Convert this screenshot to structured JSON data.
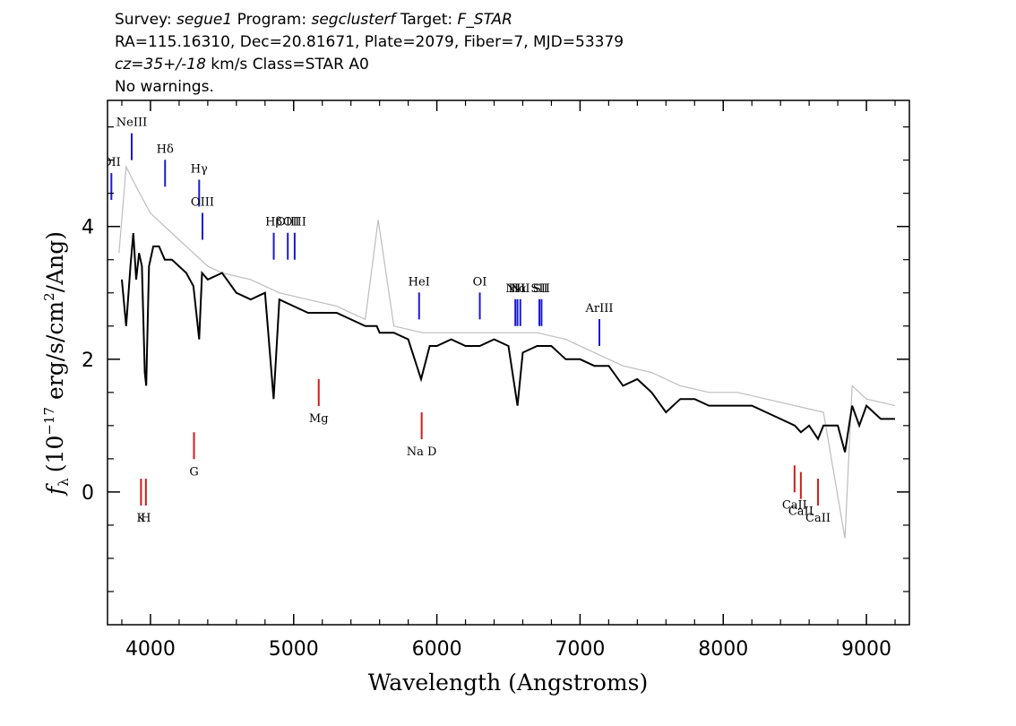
{
  "header": {
    "line1": {
      "survey_label": "Survey:",
      "survey": "segue1",
      "program_label": "Program:",
      "program": "segclusterf",
      "target_label": "Target:",
      "target": "F_STAR"
    },
    "line2": "RA=115.16310, Dec=20.81671, Plate=2079, Fiber=7, MJD=53379",
    "line3": {
      "cz": "cz=35+/-18",
      "rest": " km/s Class=STAR A0"
    },
    "line4": "No warnings."
  },
  "chart_data": {
    "type": "line",
    "xlabel": "Wavelength (Angstroms)",
    "ylabel_symbol": "f",
    "ylabel_sub": "λ",
    "ylabel_pre": "(10",
    "ylabel_exp": "−17",
    "ylabel_mid": " erg/s/cm",
    "ylabel_exp2": "2",
    "ylabel_post": "/Ang)",
    "xlim": [
      3700,
      9300
    ],
    "ylim": [
      -2.0,
      5.9
    ],
    "x_ticks": [
      4000,
      5000,
      6000,
      7000,
      8000,
      9000
    ],
    "x_tick_labels": [
      "4000",
      "5000",
      "6000",
      "7000",
      "8000",
      "9000"
    ],
    "y_ticks": [
      0,
      2,
      4
    ],
    "y_tick_labels": [
      "0",
      "2",
      "4"
    ],
    "series": [
      {
        "color": "#000000",
        "x": [
          3800,
          3830,
          3860,
          3880,
          3900,
          3920,
          3940,
          3960,
          3970,
          3990,
          4020,
          4060,
          4100,
          4150,
          4200,
          4250,
          4300,
          4340,
          4360,
          4400,
          4500,
          4600,
          4700,
          4800,
          4860,
          4900,
          5000,
          5100,
          5200,
          5300,
          5400,
          5500,
          5580,
          5600,
          5700,
          5800,
          5890,
          5950,
          6000,
          6100,
          6200,
          6300,
          6400,
          6500,
          6563,
          6600,
          6700,
          6800,
          6900,
          7000,
          7100,
          7200,
          7300,
          7400,
          7500,
          7600,
          7700,
          7800,
          7900,
          8000,
          8100,
          8200,
          8300,
          8400,
          8500,
          8542,
          8600,
          8662,
          8700,
          8800,
          8850,
          8900,
          8950,
          9000,
          9100,
          9200
        ],
        "y": [
          3.2,
          2.5,
          3.4,
          3.9,
          3.2,
          3.6,
          3.4,
          1.8,
          1.6,
          3.4,
          3.7,
          3.7,
          3.5,
          3.5,
          3.4,
          3.3,
          3.1,
          2.3,
          3.3,
          3.2,
          3.3,
          3.0,
          2.9,
          3.0,
          1.4,
          2.9,
          2.8,
          2.7,
          2.7,
          2.7,
          2.6,
          2.5,
          2.5,
          2.4,
          2.4,
          2.3,
          1.7,
          2.2,
          2.2,
          2.3,
          2.2,
          2.2,
          2.3,
          2.2,
          1.3,
          2.1,
          2.2,
          2.2,
          2.0,
          2.0,
          1.9,
          1.9,
          1.6,
          1.7,
          1.5,
          1.2,
          1.4,
          1.4,
          1.3,
          1.3,
          1.3,
          1.3,
          1.2,
          1.1,
          1.0,
          0.9,
          1.0,
          0.8,
          1.0,
          1.0,
          0.6,
          1.3,
          1.0,
          1.3,
          1.1,
          1.1
        ]
      },
      {
        "color": "#bdbdbd",
        "x": [
          3780,
          3830,
          3900,
          4000,
          4100,
          4200,
          4300,
          4400,
          4500,
          4700,
          4900,
          5100,
          5300,
          5500,
          5590,
          5700,
          5900,
          6100,
          6300,
          6500,
          6700,
          6900,
          7100,
          7300,
          7500,
          7700,
          7900,
          8100,
          8300,
          8500,
          8700,
          8850,
          8900,
          9000,
          9200
        ],
        "y": [
          3.6,
          4.9,
          4.6,
          4.2,
          4.0,
          3.8,
          3.6,
          3.4,
          3.3,
          3.2,
          3.0,
          2.9,
          2.8,
          2.6,
          4.1,
          2.5,
          2.4,
          2.4,
          2.4,
          2.4,
          2.4,
          2.3,
          2.1,
          1.9,
          1.8,
          1.6,
          1.5,
          1.5,
          1.4,
          1.3,
          1.2,
          -0.7,
          1.6,
          1.4,
          1.3
        ]
      }
    ],
    "emission_lines": [
      {
        "label": "OII",
        "wave": 3727
      },
      {
        "label": "NeIII",
        "wave": 3869
      },
      {
        "label": "Hδ",
        "wave": 4102
      },
      {
        "label": "Hγ",
        "wave": 4340
      },
      {
        "label": "OIII",
        "wave": 4363
      },
      {
        "label": "Hβ",
        "wave": 4861
      },
      {
        "label": "OIII",
        "wave": 4959
      },
      {
        "label": "OIII",
        "wave": 5007
      },
      {
        "label": "HeI",
        "wave": 5876
      },
      {
        "label": "OI",
        "wave": 6300
      },
      {
        "label": "NII",
        "wave": 6548
      },
      {
        "label": "Hα",
        "wave": 6563
      },
      {
        "label": "NII",
        "wave": 6583
      },
      {
        "label": "SII",
        "wave": 6716
      },
      {
        "label": "SII",
        "wave": 6731
      },
      {
        "label": "ArIII",
        "wave": 7135
      }
    ],
    "absorption_lines": [
      {
        "label": "K",
        "wave": 3934
      },
      {
        "label": "H",
        "wave": 3968
      },
      {
        "label": "G",
        "wave": 4304
      },
      {
        "label": "Mg",
        "wave": 5175
      },
      {
        "label": "Na D",
        "wave": 5894
      },
      {
        "label": "CaII",
        "wave": 8498
      },
      {
        "label": "CaII",
        "wave": 8542
      },
      {
        "label": "CaII",
        "wave": 8662
      }
    ]
  }
}
